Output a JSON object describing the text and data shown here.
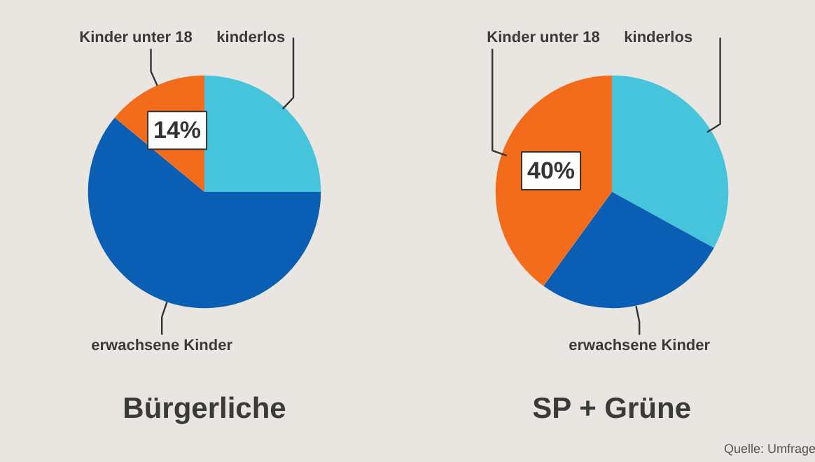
{
  "chart_data": [
    {
      "type": "pie",
      "title": "Bürgerliche",
      "categories": [
        "kinderlos",
        "erwachsene Kinder",
        "Kinder unter 18"
      ],
      "values": [
        25,
        61,
        14
      ],
      "colors": [
        "#45c4dc",
        "#0a5fb4",
        "#f26c1c"
      ],
      "value_labels": [
        null,
        null,
        "14%"
      ]
    },
    {
      "type": "pie",
      "title": "SP + Grüne",
      "categories": [
        "kinderlos",
        "erwachsene Kinder",
        "Kinder unter 18"
      ],
      "values": [
        33,
        27,
        40
      ],
      "colors": [
        "#45c4dc",
        "#0a5fb4",
        "#f26c1c"
      ],
      "value_labels": [
        null,
        null,
        "40%"
      ],
      "annotations": [
        "Quelle: Umfrage"
      ]
    }
  ]
}
